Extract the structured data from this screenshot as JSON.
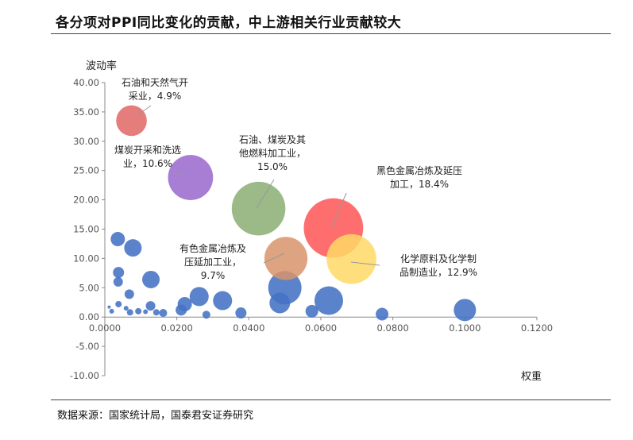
{
  "header": {
    "title": "各分项对PPI同比变化的贡献，中上游相关行业贡献较大"
  },
  "footer": {
    "source": "数据来源：国家统计局，国泰君安证券研究"
  },
  "chart_data": {
    "type": "scatter",
    "subtype": "bubble",
    "xlabel": "权重",
    "ylabel": "波动率",
    "xlim": [
      0,
      0.12
    ],
    "ylim": [
      -10,
      40
    ],
    "xticks": [
      "0.0000",
      "0.0200",
      "0.0400",
      "0.0600",
      "0.0800",
      "0.1000",
      "0.1200"
    ],
    "yticks": [
      "40.00",
      "35.00",
      "30.00",
      "25.00",
      "20.00",
      "15.00",
      "10.00",
      "5.00",
      "0.00",
      "-5.00",
      "-10.00"
    ],
    "grid": false,
    "legend": "none",
    "colors": {
      "default": "#4472C4",
      "coal": "#E06666",
      "coal_washing": "#9966CC",
      "petroleum": "#8AAE72",
      "ferrous": "#FF5555",
      "nonferrous": "#D8946B",
      "chemical": "#FFD966"
    },
    "highlighted": [
      {
        "key": "coal",
        "x": 0.0074,
        "y": 33.5,
        "size": 4.9,
        "label": [
          "石油和天然气开",
          "采业，4.9%"
        ]
      },
      {
        "key": "coal_washing",
        "x": 0.0238,
        "y": 23.8,
        "size": 10.6,
        "label": [
          "煤炭开采和洗选",
          "业，10.6%"
        ]
      },
      {
        "key": "petroleum",
        "x": 0.0427,
        "y": 18.5,
        "size": 15.0,
        "label": [
          "石油、煤炭及其",
          "他燃料加工业，",
          "15.0%"
        ]
      },
      {
        "key": "ferrous",
        "x": 0.0635,
        "y": 15.2,
        "size": 18.4,
        "label": [
          "黑色金属冶炼及延压",
          "加工，18.4%"
        ]
      },
      {
        "key": "nonferrous",
        "x": 0.0503,
        "y": 10.0,
        "size": 9.7,
        "label": [
          "有色金属冶炼及",
          "压延加工业，",
          "9.7%"
        ]
      },
      {
        "key": "chemical",
        "x": 0.0685,
        "y": 9.9,
        "size": 12.9,
        "label": [
          "化学原料及化学制",
          "品制造业，12.9%"
        ]
      }
    ],
    "others": [
      {
        "x": 0.0036,
        "y": 13.3,
        "r": 9
      },
      {
        "x": 0.0078,
        "y": 11.8,
        "r": 11
      },
      {
        "x": 0.0038,
        "y": 7.6,
        "r": 7
      },
      {
        "x": 0.0037,
        "y": 6.0,
        "r": 6
      },
      {
        "x": 0.0128,
        "y": 6.4,
        "r": 11
      },
      {
        "x": 0.0068,
        "y": 3.9,
        "r": 6
      },
      {
        "x": 0.0012,
        "y": 1.7,
        "r": 2
      },
      {
        "x": 0.0019,
        "y": 1.0,
        "r": 3
      },
      {
        "x": 0.0038,
        "y": 2.2,
        "r": 4
      },
      {
        "x": 0.0059,
        "y": 1.5,
        "r": 3
      },
      {
        "x": 0.007,
        "y": 0.8,
        "r": 4
      },
      {
        "x": 0.0093,
        "y": 1.0,
        "r": 4
      },
      {
        "x": 0.0113,
        "y": 0.9,
        "r": 3
      },
      {
        "x": 0.0127,
        "y": 1.9,
        "r": 6
      },
      {
        "x": 0.0143,
        "y": 0.8,
        "r": 4
      },
      {
        "x": 0.0162,
        "y": 0.7,
        "r": 5
      },
      {
        "x": 0.0212,
        "y": 1.2,
        "r": 7
      },
      {
        "x": 0.0222,
        "y": 2.2,
        "r": 9
      },
      {
        "x": 0.0262,
        "y": 3.5,
        "r": 12
      },
      {
        "x": 0.0282,
        "y": 0.4,
        "r": 5
      },
      {
        "x": 0.0327,
        "y": 2.8,
        "r": 12
      },
      {
        "x": 0.0378,
        "y": 0.7,
        "r": 7
      },
      {
        "x": 0.0486,
        "y": 2.4,
        "r": 13
      },
      {
        "x": 0.05,
        "y": 5.0,
        "r": 21
      },
      {
        "x": 0.0575,
        "y": 1.0,
        "r": 8
      },
      {
        "x": 0.0622,
        "y": 2.8,
        "r": 18
      },
      {
        "x": 0.077,
        "y": 0.5,
        "r": 8
      },
      {
        "x": 0.1,
        "y": 1.2,
        "r": 14
      }
    ]
  }
}
